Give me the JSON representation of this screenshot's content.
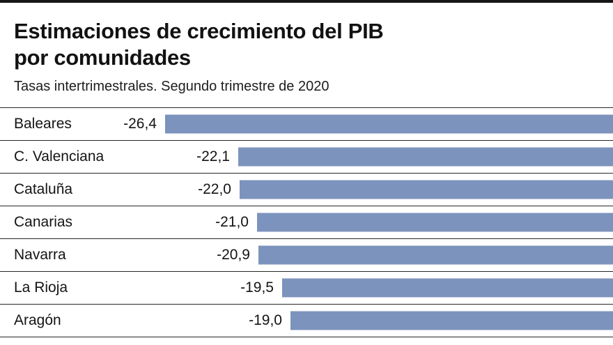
{
  "header": {
    "title_line1": "Estimaciones de crecimiento del PIB",
    "title_line2": "por comunidades",
    "subtitle": "Tasas intertrimestrales. Segundo trimestre de 2020"
  },
  "chart_data": {
    "type": "bar",
    "orientation": "horizontal",
    "bars_anchored": "right",
    "title": "Estimaciones de crecimiento del PIB por comunidades",
    "subtitle": "Tasas intertrimestrales. Segundo trimestre de 2020",
    "categories": [
      "Baleares",
      "C. Valenciana",
      "Cataluña",
      "Canarias",
      "Navarra",
      "La Rioja",
      "Aragón"
    ],
    "values": [
      -26.4,
      -22.1,
      -22.0,
      -21.0,
      -20.9,
      -19.5,
      -19.0
    ],
    "value_labels": [
      "-26,4",
      "-22,1",
      "-22,0",
      "-21,0",
      "-20,9",
      "-19,5",
      "-19,0"
    ],
    "xlabel": "",
    "ylabel": "",
    "xlim": [
      -26.4,
      0
    ],
    "grid": false,
    "legend": false,
    "bar_color": "#7c93bd",
    "rule_color": "#262626",
    "accent_top_bar_color": "#161616"
  }
}
